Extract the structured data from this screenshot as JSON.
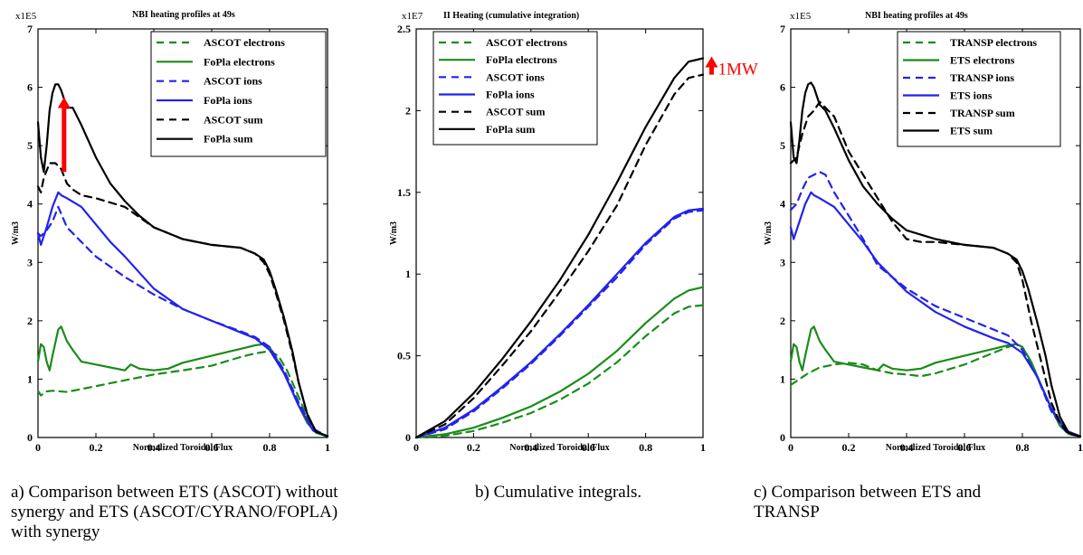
{
  "chart_data": [
    {
      "type": "line",
      "title": "NBI heating profiles at 49s",
      "multiplier_label": "x1E5",
      "xlabel": "Normalized Toroidal Flux",
      "ylabel": "W/m3",
      "xlim": [
        0,
        1
      ],
      "ylim": [
        0,
        7
      ],
      "xticks": [
        0,
        0.2,
        0.4,
        0.6,
        0.8,
        1
      ],
      "xtick_labels": [
        "0",
        "0.2",
        "0.4",
        "0.6",
        "0.8",
        "1"
      ],
      "yticks": [
        0,
        1,
        2,
        3,
        4,
        5,
        6,
        7
      ],
      "ytick_labels": [
        "0",
        "1",
        "2",
        "3",
        "4",
        "5",
        "6",
        "7"
      ],
      "grid": false,
      "legend_position": "top-right",
      "annotation_arrow": {
        "x": 0.09,
        "y_from": 4.55,
        "y_to": 5.8,
        "color": "#ff0000"
      },
      "series": [
        {
          "name": "ASCOT electrons",
          "color": "#1a8c1a",
          "dashed": true,
          "x": [
            0,
            0.01,
            0.03,
            0.05,
            0.1,
            0.2,
            0.3,
            0.4,
            0.5,
            0.6,
            0.7,
            0.75,
            0.8,
            0.83,
            0.86,
            0.9,
            0.93,
            0.96,
            1.0
          ],
          "y": [
            0.8,
            0.72,
            0.79,
            0.8,
            0.78,
            0.88,
            0.98,
            1.08,
            1.15,
            1.23,
            1.38,
            1.44,
            1.48,
            1.4,
            1.15,
            0.7,
            0.35,
            0.1,
            0.02
          ]
        },
        {
          "name": "FoPla electrons",
          "color": "#1a8c1a",
          "dashed": false,
          "x": [
            0,
            0.01,
            0.02,
            0.03,
            0.04,
            0.05,
            0.07,
            0.08,
            0.1,
            0.12,
            0.15,
            0.2,
            0.25,
            0.3,
            0.32,
            0.35,
            0.4,
            0.45,
            0.5,
            0.6,
            0.7,
            0.75,
            0.78,
            0.8,
            0.83,
            0.86,
            0.9,
            0.93,
            0.96,
            1.0
          ],
          "y": [
            1.3,
            1.6,
            1.55,
            1.3,
            1.15,
            1.4,
            1.85,
            1.9,
            1.65,
            1.5,
            1.3,
            1.25,
            1.2,
            1.15,
            1.25,
            1.18,
            1.15,
            1.18,
            1.28,
            1.4,
            1.52,
            1.58,
            1.6,
            1.55,
            1.3,
            1.0,
            0.55,
            0.25,
            0.08,
            0.02
          ]
        },
        {
          "name": "ASCOT ions",
          "color": "#2222ee",
          "dashed": true,
          "x": [
            0,
            0.01,
            0.03,
            0.05,
            0.07,
            0.1,
            0.15,
            0.2,
            0.3,
            0.4,
            0.5,
            0.6,
            0.7,
            0.75,
            0.8,
            0.85,
            0.9,
            0.95,
            1.0
          ],
          "y": [
            3.5,
            3.45,
            3.55,
            3.7,
            3.95,
            3.6,
            3.35,
            3.1,
            2.75,
            2.45,
            2.2,
            2.0,
            1.82,
            1.72,
            1.55,
            1.15,
            0.6,
            0.15,
            0.02
          ]
        },
        {
          "name": "FoPla ions",
          "color": "#2222ee",
          "dashed": false,
          "x": [
            0,
            0.01,
            0.02,
            0.03,
            0.05,
            0.07,
            0.08,
            0.1,
            0.15,
            0.2,
            0.25,
            0.3,
            0.4,
            0.5,
            0.6,
            0.7,
            0.75,
            0.8,
            0.85,
            0.9,
            0.95,
            1.0
          ],
          "y": [
            3.5,
            3.3,
            3.45,
            3.6,
            3.95,
            4.2,
            4.15,
            4.1,
            3.95,
            3.65,
            3.35,
            3.1,
            2.55,
            2.2,
            2.0,
            1.8,
            1.7,
            1.5,
            1.1,
            0.55,
            0.12,
            0.02
          ]
        },
        {
          "name": "ASCOT sum",
          "color": "#000000",
          "dashed": true,
          "x": [
            0,
            0.01,
            0.02,
            0.04,
            0.06,
            0.08,
            0.1,
            0.12,
            0.15,
            0.2,
            0.3,
            0.4,
            0.5,
            0.6,
            0.7,
            0.75,
            0.78,
            0.8,
            0.82,
            0.85,
            0.88,
            0.9,
            0.93,
            0.96,
            1.0
          ],
          "y": [
            4.3,
            4.2,
            4.45,
            4.7,
            4.7,
            4.6,
            4.35,
            4.25,
            4.15,
            4.1,
            3.95,
            3.6,
            3.4,
            3.3,
            3.25,
            3.15,
            3.0,
            2.8,
            2.5,
            2.0,
            1.4,
            0.95,
            0.4,
            0.1,
            0.02
          ]
        },
        {
          "name": "FoPla sum",
          "color": "#000000",
          "dashed": false,
          "x": [
            0,
            0.01,
            0.02,
            0.03,
            0.04,
            0.05,
            0.06,
            0.07,
            0.08,
            0.1,
            0.12,
            0.15,
            0.2,
            0.25,
            0.3,
            0.35,
            0.4,
            0.5,
            0.6,
            0.7,
            0.75,
            0.78,
            0.8,
            0.82,
            0.85,
            0.88,
            0.9,
            0.93,
            0.96,
            1.0
          ],
          "y": [
            5.4,
            4.8,
            4.55,
            5.0,
            5.6,
            5.9,
            6.05,
            6.05,
            5.95,
            5.65,
            5.65,
            5.35,
            4.8,
            4.35,
            4.05,
            3.8,
            3.6,
            3.4,
            3.3,
            3.25,
            3.15,
            3.05,
            2.85,
            2.55,
            2.05,
            1.45,
            0.95,
            0.4,
            0.1,
            0.02
          ]
        }
      ]
    },
    {
      "type": "line",
      "title": "II Heating (cumulative integration)",
      "multiplier_label": "x1E7",
      "xlabel": "Normalized Toroidal Flux",
      "ylabel": "W/m3",
      "xlim": [
        0,
        1
      ],
      "ylim": [
        0,
        2.5
      ],
      "xticks": [
        0,
        0.2,
        0.4,
        0.6,
        0.8,
        1
      ],
      "xtick_labels": [
        "0",
        "0.2",
        "0.4",
        "0.6",
        "0.8",
        "1"
      ],
      "yticks": [
        0,
        0.5,
        1,
        1.5,
        2,
        2.5
      ],
      "ytick_labels": [
        "0",
        "0.5",
        "1",
        "1.5",
        "2",
        "2.5"
      ],
      "grid": false,
      "legend_position": "top-left",
      "annotation_arrow": {
        "x": 1.03,
        "y_from": 2.22,
        "y_to": 2.32,
        "color": "#ff0000",
        "label": "1MW"
      },
      "series": [
        {
          "name": "ASCOT electrons",
          "color": "#1a8c1a",
          "dashed": true,
          "x": [
            0,
            0.1,
            0.2,
            0.3,
            0.4,
            0.5,
            0.6,
            0.7,
            0.8,
            0.9,
            0.95,
            1.0
          ],
          "y": [
            0,
            0.01,
            0.04,
            0.09,
            0.15,
            0.23,
            0.33,
            0.46,
            0.62,
            0.76,
            0.8,
            0.81
          ]
        },
        {
          "name": "FoPla electrons",
          "color": "#1a8c1a",
          "dashed": false,
          "x": [
            0,
            0.1,
            0.2,
            0.3,
            0.4,
            0.5,
            0.6,
            0.7,
            0.8,
            0.9,
            0.95,
            1.0
          ],
          "y": [
            0,
            0.02,
            0.06,
            0.12,
            0.19,
            0.28,
            0.39,
            0.53,
            0.7,
            0.85,
            0.9,
            0.92
          ]
        },
        {
          "name": "ASCOT ions",
          "color": "#2222ee",
          "dashed": true,
          "x": [
            0,
            0.1,
            0.2,
            0.3,
            0.4,
            0.5,
            0.6,
            0.7,
            0.8,
            0.9,
            0.95,
            1.0
          ],
          "y": [
            0,
            0.05,
            0.16,
            0.3,
            0.45,
            0.62,
            0.8,
            0.98,
            1.18,
            1.34,
            1.38,
            1.39
          ]
        },
        {
          "name": "FoPla ions",
          "color": "#2222ee",
          "dashed": false,
          "x": [
            0,
            0.1,
            0.2,
            0.3,
            0.4,
            0.5,
            0.6,
            0.7,
            0.8,
            0.9,
            0.95,
            1.0
          ],
          "y": [
            0,
            0.06,
            0.17,
            0.31,
            0.46,
            0.63,
            0.81,
            1.0,
            1.19,
            1.35,
            1.39,
            1.4
          ]
        },
        {
          "name": "ASCOT sum",
          "color": "#000000",
          "dashed": true,
          "x": [
            0,
            0.1,
            0.2,
            0.3,
            0.4,
            0.5,
            0.6,
            0.7,
            0.8,
            0.9,
            0.95,
            1.0
          ],
          "y": [
            0,
            0.08,
            0.24,
            0.44,
            0.65,
            0.89,
            1.14,
            1.42,
            1.79,
            2.1,
            2.2,
            2.22
          ]
        },
        {
          "name": "FoPla sum",
          "color": "#000000",
          "dashed": false,
          "x": [
            0,
            0.1,
            0.2,
            0.3,
            0.4,
            0.5,
            0.6,
            0.7,
            0.8,
            0.9,
            0.95,
            1.0
          ],
          "y": [
            0,
            0.1,
            0.27,
            0.48,
            0.71,
            0.96,
            1.24,
            1.56,
            1.9,
            2.2,
            2.3,
            2.32
          ]
        }
      ]
    },
    {
      "type": "line",
      "title": "NBI heating profiles at 49s",
      "multiplier_label": "x1E5",
      "xlabel": "Normalized Toroidal Flux",
      "ylabel": "W/m3",
      "xlim": [
        0,
        1
      ],
      "ylim": [
        0,
        7
      ],
      "xticks": [
        0,
        0.2,
        0.4,
        0.6,
        0.8,
        1
      ],
      "xtick_labels": [
        "0",
        "0.2",
        "0.4",
        "0.6",
        "0.8",
        "1"
      ],
      "yticks": [
        0,
        1,
        2,
        3,
        4,
        5,
        6,
        7
      ],
      "ytick_labels": [
        "0",
        "1",
        "2",
        "3",
        "4",
        "5",
        "6",
        "7"
      ],
      "grid": false,
      "legend_position": "top-right",
      "series": [
        {
          "name": "TRANSP electrons",
          "color": "#1a8c1a",
          "dashed": true,
          "x": [
            0,
            0.03,
            0.06,
            0.1,
            0.15,
            0.2,
            0.25,
            0.3,
            0.35,
            0.4,
            0.45,
            0.5,
            0.6,
            0.7,
            0.75,
            0.78,
            0.8,
            0.83,
            0.86,
            0.9,
            0.93,
            0.96,
            1.0
          ],
          "y": [
            0.9,
            1.0,
            1.1,
            1.2,
            1.25,
            1.28,
            1.25,
            1.15,
            1.1,
            1.08,
            1.05,
            1.1,
            1.25,
            1.45,
            1.55,
            1.6,
            1.55,
            1.3,
            0.95,
            0.5,
            0.2,
            0.06,
            0.02
          ]
        },
        {
          "name": "ETS electrons",
          "color": "#1a8c1a",
          "dashed": false,
          "x": [
            0,
            0.01,
            0.02,
            0.03,
            0.04,
            0.05,
            0.07,
            0.08,
            0.1,
            0.12,
            0.15,
            0.2,
            0.25,
            0.3,
            0.32,
            0.35,
            0.4,
            0.45,
            0.5,
            0.6,
            0.7,
            0.75,
            0.78,
            0.8,
            0.83,
            0.86,
            0.9,
            0.93,
            0.96,
            1.0
          ],
          "y": [
            1.3,
            1.6,
            1.55,
            1.3,
            1.15,
            1.4,
            1.85,
            1.9,
            1.65,
            1.5,
            1.3,
            1.25,
            1.2,
            1.15,
            1.25,
            1.18,
            1.15,
            1.18,
            1.28,
            1.4,
            1.52,
            1.58,
            1.6,
            1.55,
            1.3,
            0.95,
            0.5,
            0.2,
            0.06,
            0.02
          ]
        },
        {
          "name": "TRANSP ions",
          "color": "#2222ee",
          "dashed": true,
          "x": [
            0,
            0.02,
            0.04,
            0.06,
            0.08,
            0.1,
            0.12,
            0.15,
            0.2,
            0.25,
            0.3,
            0.4,
            0.5,
            0.6,
            0.7,
            0.75,
            0.8,
            0.85,
            0.9,
            0.95,
            1.0
          ],
          "y": [
            3.9,
            4.0,
            4.25,
            4.45,
            4.5,
            4.55,
            4.5,
            4.2,
            3.8,
            3.4,
            2.95,
            2.55,
            2.25,
            2.05,
            1.85,
            1.75,
            1.5,
            1.05,
            0.45,
            0.1,
            0.02
          ]
        },
        {
          "name": "ETS ions",
          "color": "#2222ee",
          "dashed": false,
          "x": [
            0,
            0.01,
            0.02,
            0.03,
            0.05,
            0.07,
            0.08,
            0.1,
            0.15,
            0.2,
            0.25,
            0.3,
            0.4,
            0.5,
            0.6,
            0.7,
            0.75,
            0.8,
            0.85,
            0.9,
            0.95,
            1.0
          ],
          "y": [
            3.6,
            3.4,
            3.55,
            3.7,
            4.0,
            4.2,
            4.15,
            4.1,
            3.95,
            3.65,
            3.35,
            3.0,
            2.5,
            2.15,
            1.9,
            1.7,
            1.62,
            1.45,
            1.05,
            0.5,
            0.12,
            0.02
          ]
        },
        {
          "name": "TRANSP sum",
          "color": "#000000",
          "dashed": true,
          "x": [
            0,
            0.02,
            0.04,
            0.06,
            0.08,
            0.1,
            0.12,
            0.15,
            0.2,
            0.25,
            0.3,
            0.35,
            0.4,
            0.45,
            0.5,
            0.6,
            0.7,
            0.75,
            0.78,
            0.8,
            0.83,
            0.86,
            0.88,
            0.9,
            0.93,
            0.96,
            1.0
          ],
          "y": [
            4.7,
            4.8,
            5.2,
            5.5,
            5.6,
            5.75,
            5.65,
            5.5,
            4.9,
            4.5,
            4.1,
            3.7,
            3.4,
            3.35,
            3.35,
            3.3,
            3.25,
            3.15,
            3.0,
            2.7,
            2.0,
            1.4,
            1.0,
            0.6,
            0.25,
            0.06,
            0.02
          ]
        },
        {
          "name": "ETS sum",
          "color": "#000000",
          "dashed": false,
          "x": [
            0,
            0.01,
            0.02,
            0.03,
            0.04,
            0.05,
            0.06,
            0.07,
            0.08,
            0.1,
            0.12,
            0.15,
            0.2,
            0.25,
            0.3,
            0.35,
            0.4,
            0.5,
            0.6,
            0.7,
            0.75,
            0.78,
            0.8,
            0.82,
            0.85,
            0.88,
            0.9,
            0.93,
            0.96,
            1.0
          ],
          "y": [
            5.4,
            4.8,
            4.7,
            5.1,
            5.6,
            5.9,
            6.05,
            6.08,
            6.0,
            5.7,
            5.6,
            5.3,
            4.75,
            4.3,
            4.0,
            3.75,
            3.55,
            3.4,
            3.3,
            3.25,
            3.15,
            3.05,
            2.85,
            2.55,
            2.0,
            1.4,
            0.9,
            0.35,
            0.08,
            0.02
          ]
        }
      ]
    }
  ],
  "captions": [
    {
      "lines": [
        "a) Comparison between ETS (ASCOT) without",
        "synergy and ETS (ASCOT/CYRANO/FOPLA)",
        "with synergy"
      ]
    },
    {
      "lines": [
        "b) Cumulative integrals."
      ]
    },
    {
      "lines": [
        "c) Comparison between ETS and",
        "TRANSP"
      ]
    }
  ]
}
